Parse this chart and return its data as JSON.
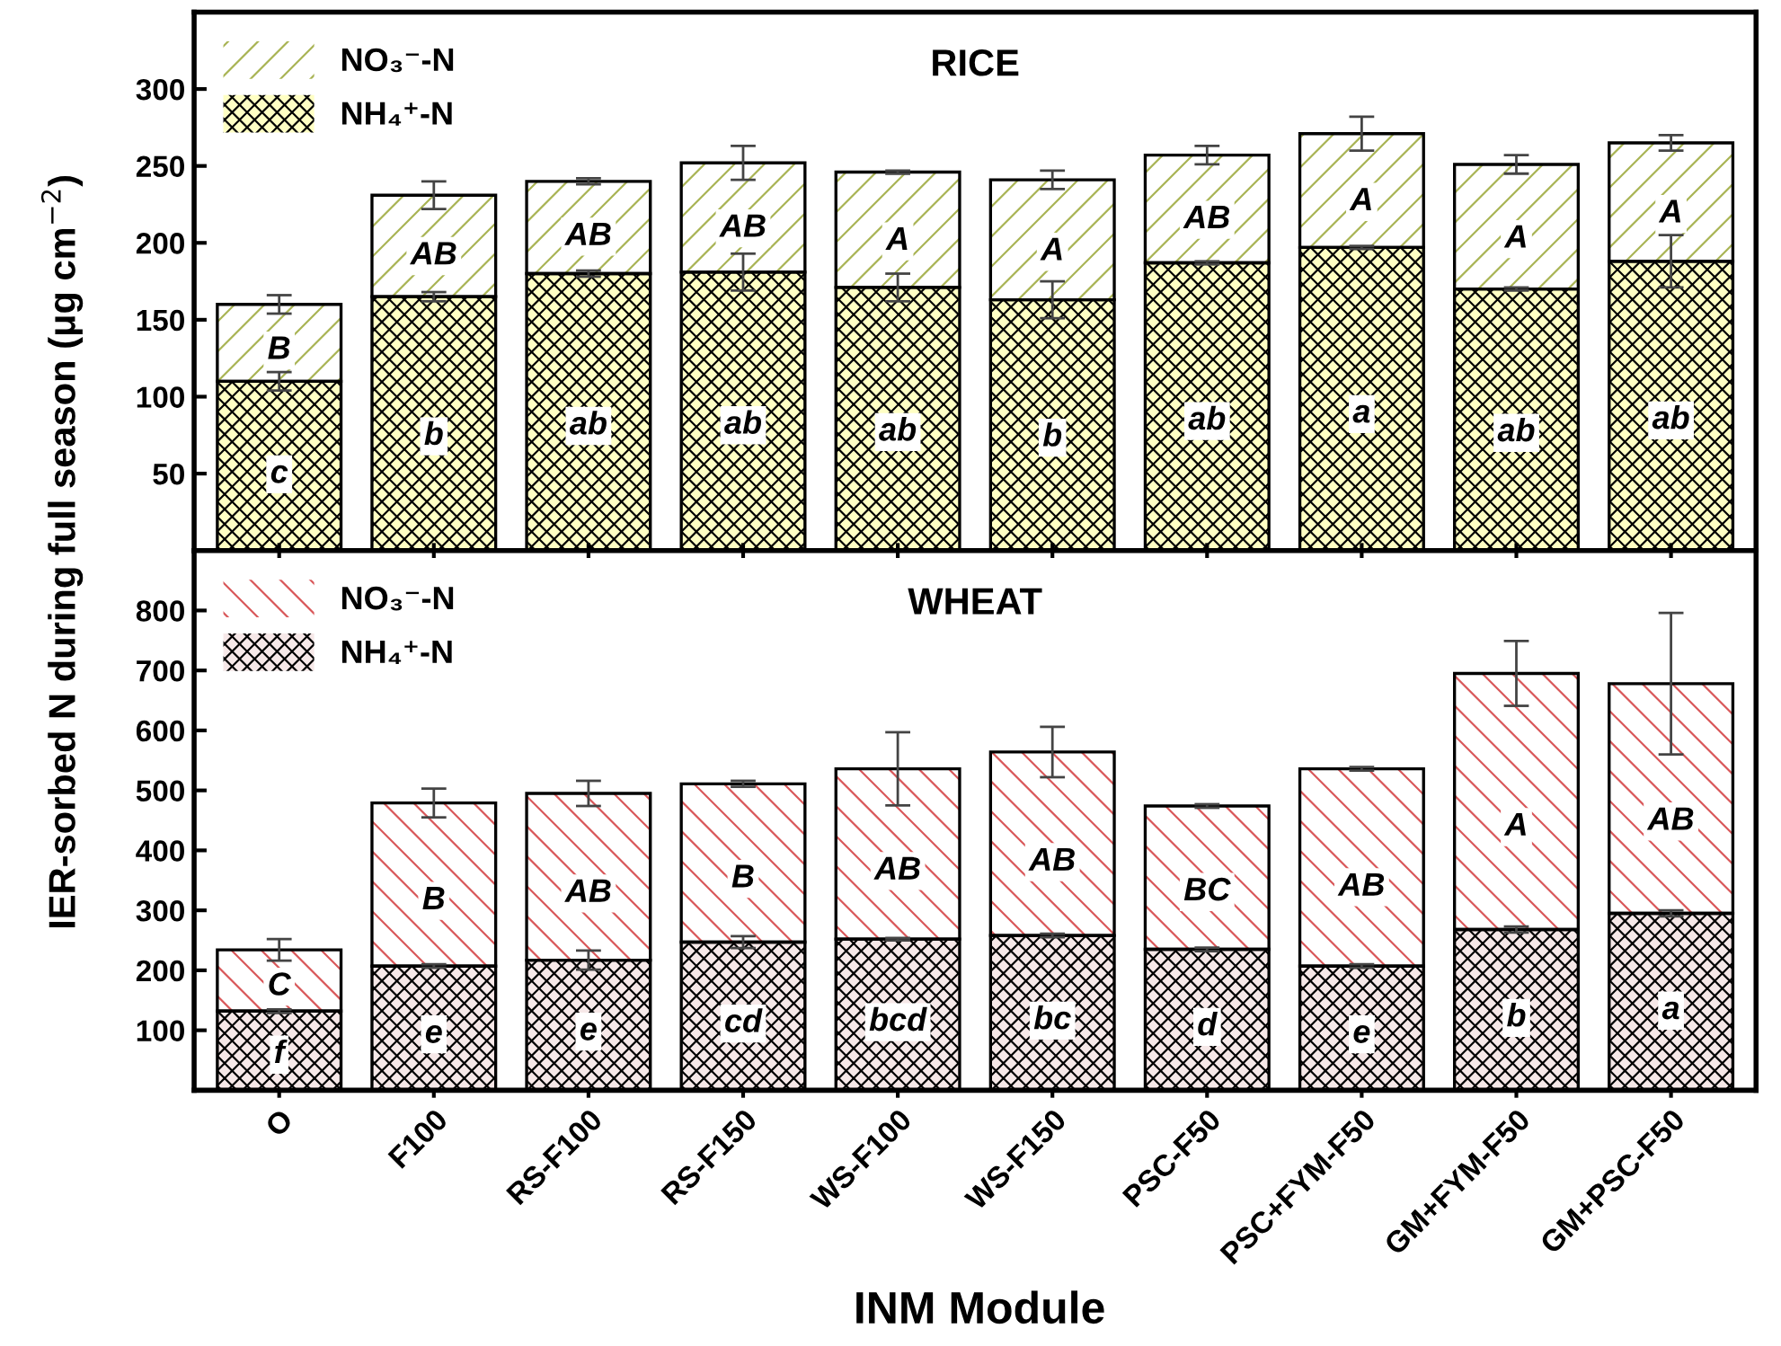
{
  "chart_data": [
    {
      "type": "bar",
      "stacked": true,
      "title": "RICE",
      "categories": [
        null,
        null,
        null,
        null,
        null,
        null,
        null,
        null,
        null,
        null
      ],
      "series": [
        {
          "name": "NH₄⁺-N",
          "color": "#ffffc4",
          "values": [
            110,
            165,
            180,
            181,
            171,
            163,
            187,
            197,
            170,
            188
          ],
          "errors": [
            6,
            3,
            2,
            12,
            9,
            12,
            1,
            1,
            1,
            17
          ],
          "value_labels": [
            "c",
            "b",
            "ab",
            "ab",
            "ab",
            "b",
            "ab",
            "a",
            "ab",
            "ab"
          ]
        },
        {
          "name": "NO₃⁻-N",
          "color": "#a9b455",
          "values": [
            50,
            66,
            60,
            71,
            75,
            78,
            70,
            74,
            81,
            77
          ],
          "errors": [
            6,
            9,
            2,
            11,
            1,
            6,
            6,
            11,
            6,
            5
          ],
          "value_labels": [
            "B",
            "AB",
            "AB",
            "AB",
            "A",
            "A",
            "AB",
            "A",
            "A",
            "A"
          ]
        }
      ],
      "ylim": [
        0,
        350
      ],
      "yticks": [
        50,
        100,
        150,
        200,
        250,
        300
      ],
      "legend": "top left",
      "tick_labels": "y",
      "grid": false
    },
    {
      "type": "bar",
      "stacked": true,
      "title": "WHEAT",
      "categories": [
        "O",
        "F100",
        "RS-F100",
        "RS-F150",
        "WS-F100",
        "WS-F150",
        "PSC-F50",
        "PSC+FYM-F50",
        "GM+FYM-F50",
        "GM+PSC-F50"
      ],
      "series": [
        {
          "name": "NH₄⁺-N",
          "color": "#f6e8e8",
          "values": [
            132,
            207,
            217,
            247,
            252,
            258,
            235,
            207,
            268,
            295
          ],
          "errors": [
            3,
            3,
            16,
            10,
            2,
            3,
            3,
            3,
            5,
            5
          ],
          "value_labels": [
            "f",
            "e",
            "e",
            "cd",
            "bcd",
            "bc",
            "d",
            "e",
            "b",
            "a"
          ]
        },
        {
          "name": "NO₃⁻-N",
          "color": "#d9585a",
          "values": [
            102,
            272,
            278,
            264,
            284,
            306,
            239,
            329,
            427,
            383
          ],
          "errors": [
            18,
            24,
            21,
            5,
            61,
            42,
            3,
            3,
            54,
            118
          ],
          "value_labels": [
            "C",
            "B",
            "AB",
            "B",
            "AB",
            "AB",
            "BC",
            "AB",
            "A",
            "AB"
          ]
        }
      ],
      "ylim": [
        0,
        900
      ],
      "yticks": [
        100,
        200,
        300,
        400,
        500,
        600,
        700,
        800
      ],
      "legend": "top left",
      "grid": false,
      "xlabel": "INM Module",
      "ylabel": "IER-sorbed N during full season (μg cm$^{−2}$)"
    }
  ]
}
